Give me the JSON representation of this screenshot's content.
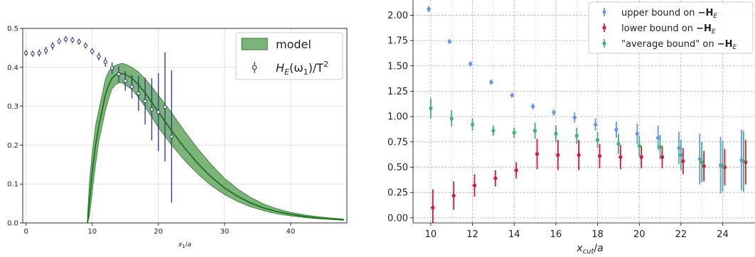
{
  "chart_data": [
    {
      "type": "line",
      "title": "",
      "xlabel": "x_1/a",
      "ylabel": "",
      "xlim": [
        -0.5,
        48.5
      ],
      "ylim": [
        0,
        0.5
      ],
      "xticks": [
        "0",
        "10",
        "20",
        "30",
        "40"
      ],
      "yticks": [
        "0.0",
        "0.1",
        "0.2",
        "0.3",
        "0.4",
        "0.5"
      ],
      "grid": true,
      "legend_position": "top-right",
      "legend": {
        "model_label": "model",
        "points_label_main": "H",
        "points_label_sub": "E",
        "points_label_rest": "(ω",
        "points_label_sub2": "1",
        "points_label_tail": ")/T",
        "points_label_sup": "2"
      },
      "colors": {
        "band": "#4f9a4f",
        "band_edge": "#2e7d2e",
        "line": "#107010",
        "points": "#3a3a8c"
      },
      "series": [
        {
          "name": "model",
          "x": [
            9.3,
            9.6,
            10.0,
            10.5,
            11.0,
            11.5,
            12.0,
            12.5,
            13.0,
            13.5,
            14.0,
            14.5,
            15.0,
            16.0,
            17.0,
            18.0,
            19.0,
            20.0,
            22.0,
            24.0,
            26.0,
            28.0,
            30.0,
            32.0,
            34.0,
            36.0,
            38.0,
            40.0,
            42.0,
            44.0,
            46.0,
            48.0
          ],
          "y": [
            0.0,
            0.06,
            0.13,
            0.2,
            0.25,
            0.29,
            0.33,
            0.355,
            0.372,
            0.38,
            0.384,
            0.384,
            0.382,
            0.372,
            0.355,
            0.334,
            0.31,
            0.285,
            0.237,
            0.192,
            0.152,
            0.118,
            0.09,
            0.068,
            0.051,
            0.038,
            0.029,
            0.022,
            0.017,
            0.013,
            0.01,
            0.008
          ],
          "lower": [
            0.0,
            0.02,
            0.08,
            0.15,
            0.21,
            0.25,
            0.29,
            0.32,
            0.345,
            0.355,
            0.36,
            0.36,
            0.355,
            0.343,
            0.322,
            0.298,
            0.272,
            0.245,
            0.2,
            0.16,
            0.125,
            0.096,
            0.073,
            0.055,
            0.041,
            0.031,
            0.023,
            0.018,
            0.014,
            0.011,
            0.009,
            0.007
          ],
          "upper": [
            0.02,
            0.11,
            0.18,
            0.25,
            0.29,
            0.33,
            0.37,
            0.39,
            0.4,
            0.405,
            0.408,
            0.41,
            0.408,
            0.4,
            0.388,
            0.37,
            0.35,
            0.328,
            0.283,
            0.235,
            0.19,
            0.15,
            0.115,
            0.087,
            0.065,
            0.048,
            0.036,
            0.027,
            0.021,
            0.016,
            0.013,
            0.01
          ]
        },
        {
          "name": "H_E(ω_1)/T^2",
          "x": [
            0,
            1,
            2,
            3,
            4,
            5,
            6,
            7,
            8,
            9,
            10,
            11,
            12,
            13,
            14,
            15,
            16,
            17,
            18,
            19,
            20,
            21,
            22
          ],
          "y": [
            0.437,
            0.435,
            0.437,
            0.443,
            0.455,
            0.467,
            0.472,
            0.47,
            0.466,
            0.456,
            0.441,
            0.428,
            0.414,
            0.398,
            0.382,
            0.365,
            0.35,
            0.333,
            0.313,
            0.292,
            0.285,
            0.298,
            0.222
          ],
          "yerr": [
            0.008,
            0.008,
            0.009,
            0.01,
            0.01,
            0.008,
            0.008,
            0.008,
            0.008,
            0.008,
            0.008,
            0.01,
            0.012,
            0.015,
            0.02,
            0.025,
            0.03,
            0.045,
            0.06,
            0.08,
            0.1,
            0.14,
            0.17
          ]
        }
      ]
    },
    {
      "type": "scatter",
      "title": "",
      "xlabel": "x_cut/a",
      "ylabel": "",
      "xlim": [
        9.15,
        25.55
      ],
      "ylim": [
        -0.05,
        2.15
      ],
      "xticks": [
        "10",
        "12",
        "14",
        "16",
        "18",
        "20",
        "22",
        "24"
      ],
      "yticks": [
        "0.00",
        "0.25",
        "0.50",
        "0.75",
        "1.00",
        "1.25",
        "1.50",
        "1.75",
        "2.00"
      ],
      "grid": true,
      "legend_position": "top-right",
      "legend": {
        "upper_prefix": "upper bound on ",
        "lower_prefix": "lower bound on ",
        "avg_prefix": "\"average bound\" on ",
        "target": "−H",
        "target_sub": "E"
      },
      "colors": {
        "upper": "#6495ed",
        "lower": "#dc143c",
        "average": "#3cb371"
      },
      "series": [
        {
          "name": "upper bound on −H_E",
          "x": [
            10,
            11,
            12,
            13,
            14,
            15,
            16,
            17,
            18,
            19,
            20,
            21,
            22,
            23,
            24,
            25
          ],
          "y": [
            2.06,
            1.74,
            1.52,
            1.34,
            1.21,
            1.1,
            1.04,
            0.99,
            0.92,
            0.87,
            0.83,
            0.79,
            0.69,
            0.58,
            0.52,
            0.57
          ],
          "yerr": [
            0.03,
            0.025,
            0.025,
            0.025,
            0.025,
            0.03,
            0.03,
            0.05,
            0.06,
            0.08,
            0.1,
            0.12,
            0.16,
            0.25,
            0.28,
            0.3
          ]
        },
        {
          "name": "lower bound on −H_E",
          "x": [
            10,
            11,
            12,
            13,
            14,
            15,
            16,
            17,
            18,
            19,
            20,
            21,
            22,
            23,
            24,
            25
          ],
          "y": [
            0.1,
            0.22,
            0.32,
            0.39,
            0.47,
            0.63,
            0.62,
            0.62,
            0.61,
            0.6,
            0.6,
            0.6,
            0.56,
            0.51,
            0.5,
            0.55
          ],
          "yerr": [
            0.18,
            0.14,
            0.11,
            0.08,
            0.08,
            0.15,
            0.15,
            0.15,
            0.12,
            0.12,
            0.11,
            0.11,
            0.13,
            0.15,
            0.18,
            0.22
          ]
        },
        {
          "name": "\"average bound\" on −H_E",
          "x": [
            10,
            11,
            12,
            13,
            14,
            15,
            16,
            17,
            18,
            19,
            20,
            21,
            22,
            23,
            24,
            25
          ],
          "y": [
            1.08,
            0.98,
            0.92,
            0.86,
            0.84,
            0.86,
            0.83,
            0.81,
            0.77,
            0.73,
            0.71,
            0.7,
            0.62,
            0.55,
            0.51,
            0.56
          ],
          "yerr": [
            0.1,
            0.08,
            0.06,
            0.05,
            0.05,
            0.08,
            0.08,
            0.08,
            0.08,
            0.1,
            0.1,
            0.12,
            0.15,
            0.2,
            0.25,
            0.3
          ]
        }
      ]
    }
  ]
}
